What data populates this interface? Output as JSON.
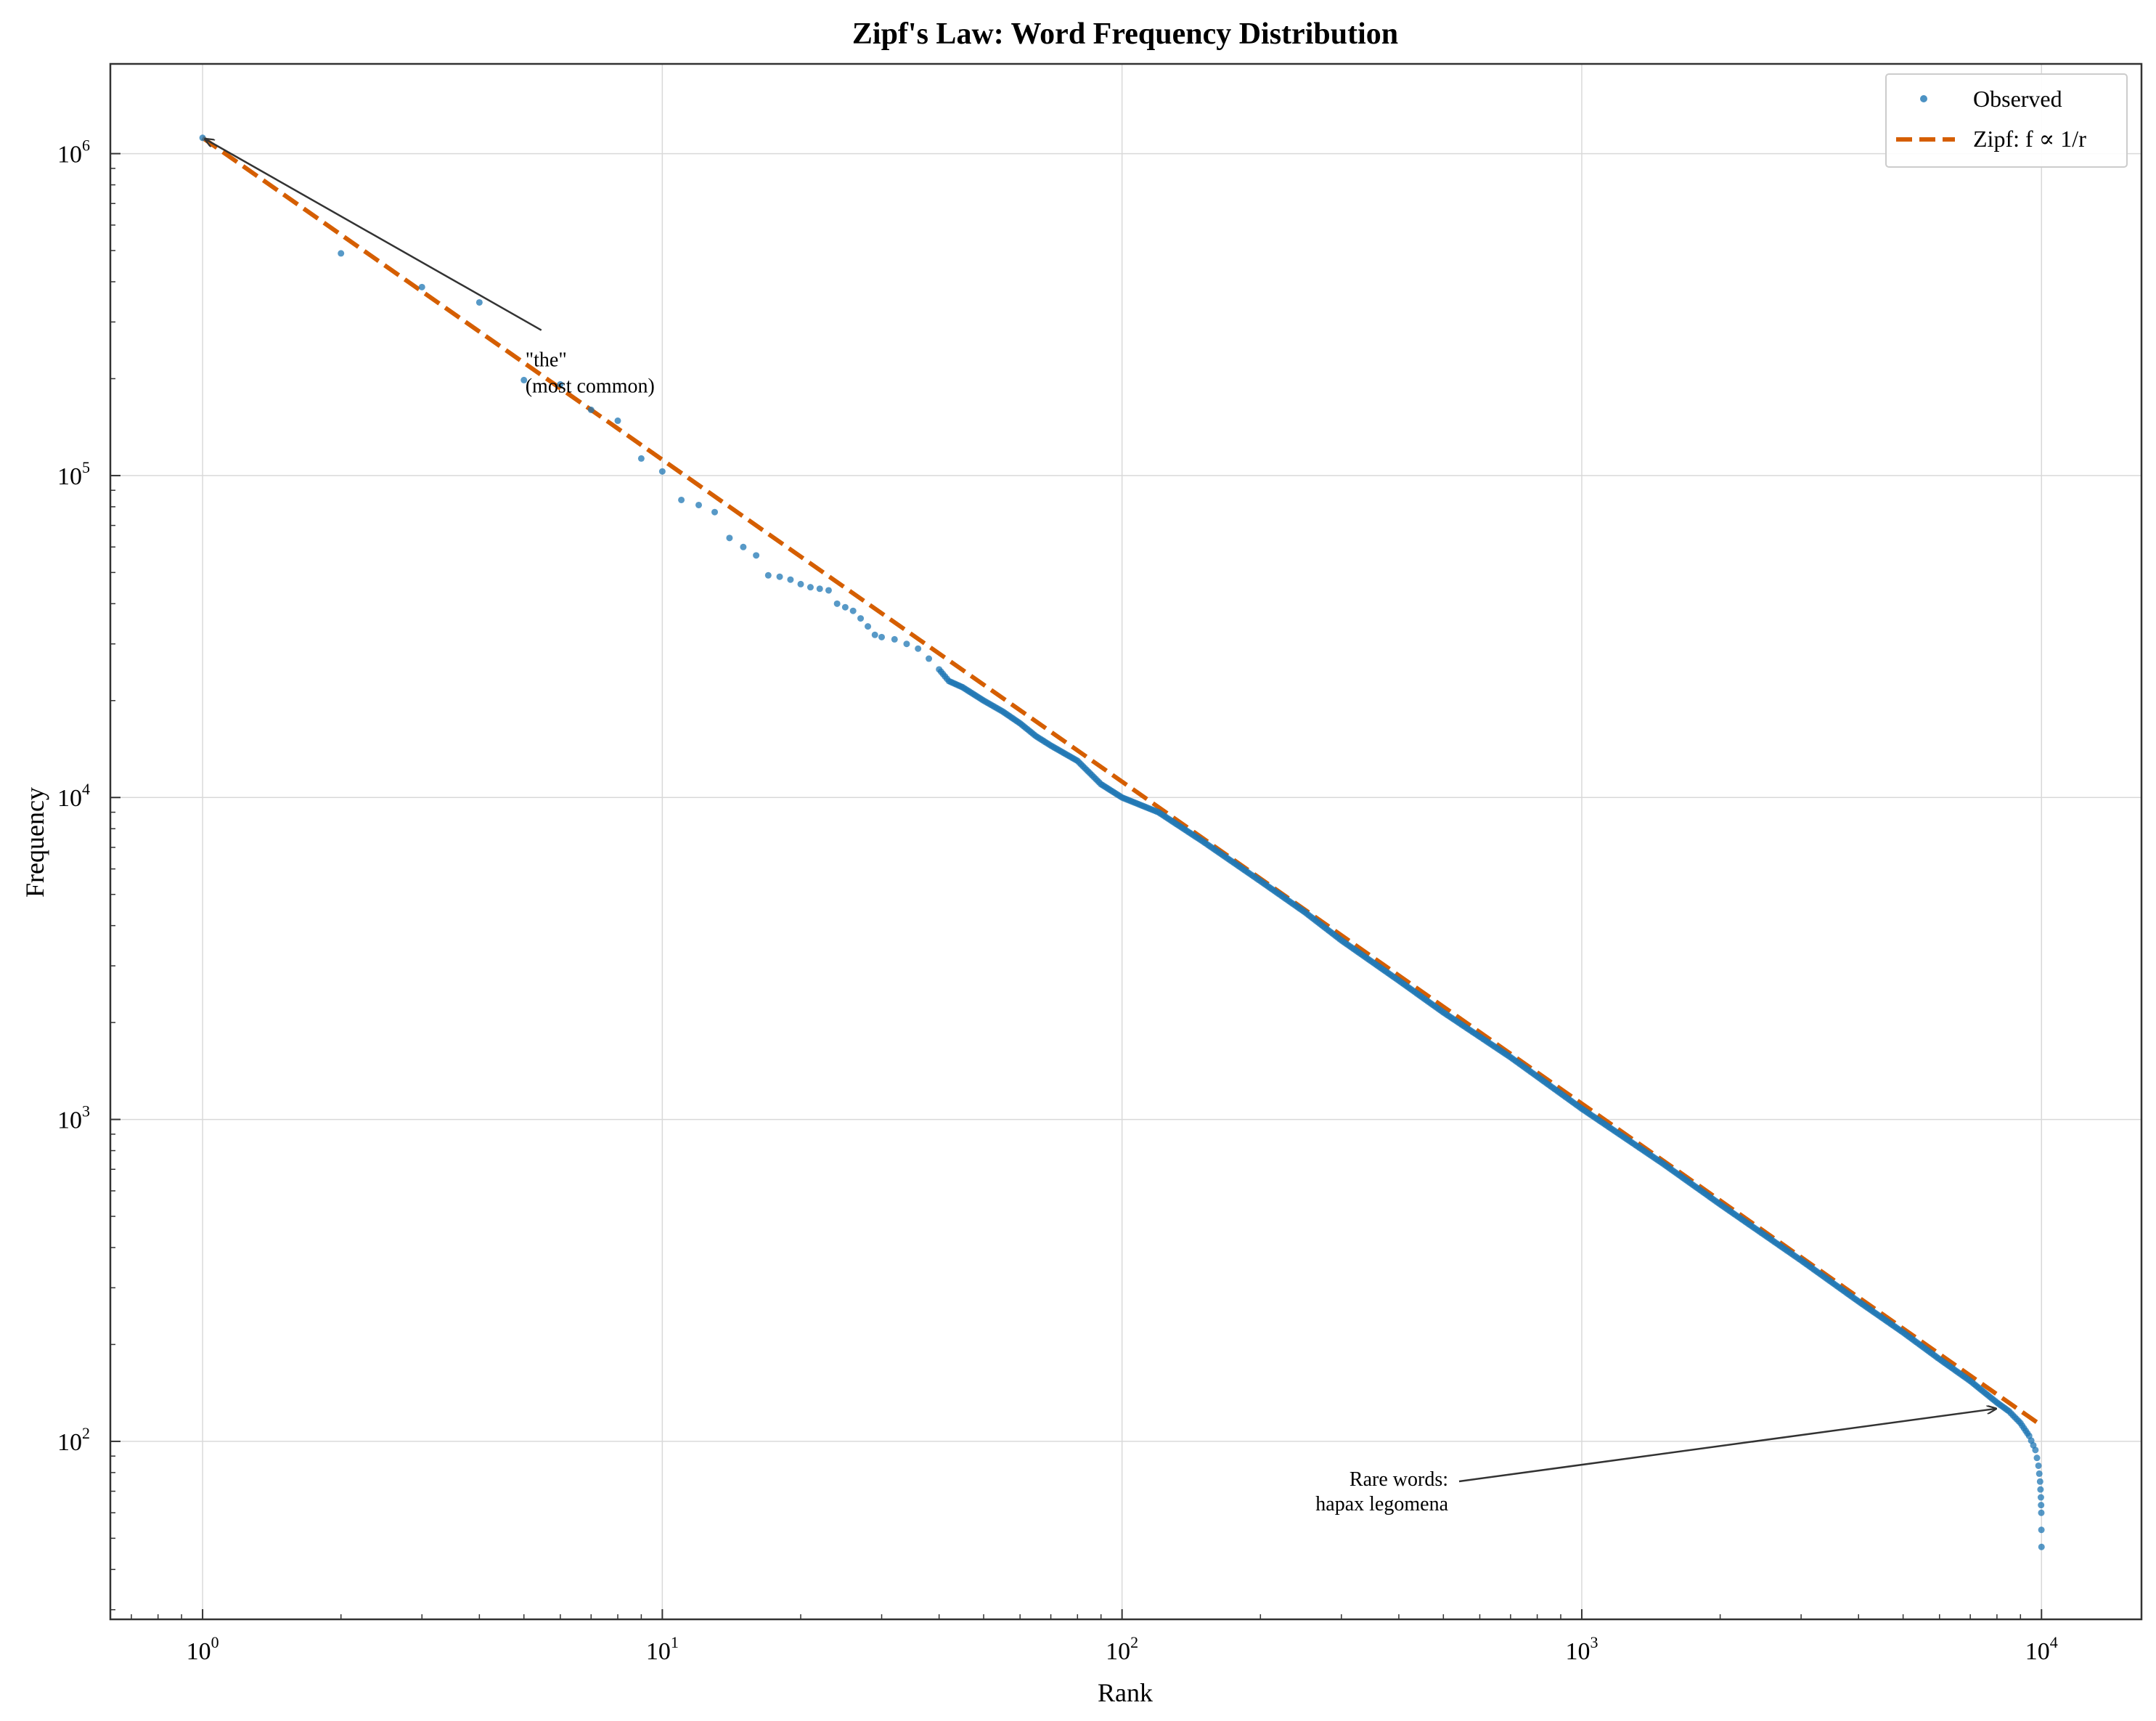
{
  "chart_data": {
    "type": "scatter",
    "title": "Zipf's Law: Word Frequency Distribution",
    "xlabel": "Rank",
    "ylabel": "Frequency",
    "xscale": "log",
    "yscale": "log",
    "xlim": [
      0.63,
      16500
    ],
    "ylim": [
      28,
      1900000
    ],
    "grid": true,
    "legend": {
      "placement": "top-right",
      "entries": [
        {
          "label": "Observed",
          "marker": "dot"
        },
        {
          "label": "Zipf: f ∝ 1/r",
          "marker": "dashed-line"
        }
      ]
    },
    "x_ticks": [
      {
        "base": "10",
        "exp": "0",
        "value": 1
      },
      {
        "base": "10",
        "exp": "1",
        "value": 10
      },
      {
        "base": "10",
        "exp": "2",
        "value": 100
      },
      {
        "base": "10",
        "exp": "3",
        "value": 1000
      },
      {
        "base": "10",
        "exp": "4",
        "value": 10000
      }
    ],
    "y_ticks": [
      {
        "base": "10",
        "exp": "2",
        "value": 100
      },
      {
        "base": "10",
        "exp": "3",
        "value": 1000
      },
      {
        "base": "10",
        "exp": "4",
        "value": 10000
      },
      {
        "base": "10",
        "exp": "5",
        "value": 100000
      },
      {
        "base": "10",
        "exp": "6",
        "value": 1000000
      }
    ],
    "series": [
      {
        "name": "Observed",
        "color": "#1f77b4",
        "style": "points",
        "points": [
          [
            1,
            1120000
          ],
          [
            2,
            490000
          ],
          [
            3,
            385000
          ],
          [
            4,
            345000
          ],
          [
            5,
            198000
          ],
          [
            6,
            192000
          ],
          [
            7,
            160000
          ],
          [
            8,
            148000
          ],
          [
            9,
            113000
          ],
          [
            10,
            103000
          ],
          [
            11,
            84000
          ],
          [
            12,
            81000
          ],
          [
            13,
            77000
          ],
          [
            14,
            64000
          ],
          [
            15,
            60000
          ],
          [
            16,
            56500
          ],
          [
            17,
            49000
          ],
          [
            18,
            48500
          ],
          [
            19,
            47500
          ],
          [
            20,
            46000
          ],
          [
            21,
            45000
          ],
          [
            22,
            44500
          ],
          [
            23,
            44000
          ],
          [
            24,
            40000
          ],
          [
            25,
            39000
          ],
          [
            26,
            38000
          ],
          [
            27,
            36000
          ],
          [
            28,
            34000
          ],
          [
            29,
            32000
          ],
          [
            30,
            31500
          ],
          [
            32,
            31000
          ],
          [
            34,
            30000
          ],
          [
            36,
            29000
          ],
          [
            38,
            27000
          ],
          [
            40,
            25000
          ],
          [
            42,
            23000
          ],
          [
            45,
            22000
          ],
          [
            50,
            20000
          ],
          [
            55,
            18500
          ],
          [
            60,
            17000
          ],
          [
            65,
            15500
          ],
          [
            70,
            14500
          ],
          [
            80,
            13000
          ],
          [
            90,
            11000
          ],
          [
            100,
            10000
          ],
          [
            120,
            9000
          ],
          [
            150,
            7300
          ],
          [
            200,
            5500
          ],
          [
            250,
            4400
          ],
          [
            300,
            3600
          ],
          [
            400,
            2700
          ],
          [
            500,
            2150
          ],
          [
            700,
            1560
          ],
          [
            1000,
            1080
          ],
          [
            1500,
            730
          ],
          [
            2000,
            545
          ],
          [
            3000,
            365
          ],
          [
            4000,
            272
          ],
          [
            5000,
            218
          ],
          [
            6000,
            180
          ],
          [
            7000,
            154
          ],
          [
            8000,
            132
          ],
          [
            8500,
            124
          ],
          [
            9000,
            114
          ],
          [
            9400,
            104
          ],
          [
            9700,
            94
          ],
          [
            9850,
            84
          ],
          [
            9930,
            75
          ],
          [
            9970,
            67
          ],
          [
            9990,
            60
          ],
          [
            10000,
            47
          ]
        ]
      },
      {
        "name": "Zipf: f ∝ 1/r",
        "color": "#d55e00",
        "style": "dashed",
        "points": [
          [
            1,
            1120000
          ],
          [
            10000,
            112
          ]
        ]
      }
    ],
    "annotations": [
      {
        "lines": [
          "\"the\"",
          "(most common)"
        ],
        "target": [
          1,
          1120000
        ],
        "text_at": [
          5,
          280000
        ]
      },
      {
        "lines": [
          "Rare words:",
          "hapax legomena"
        ],
        "target": [
          8000,
          125
        ],
        "text_at": [
          500,
          70000
        ]
      }
    ]
  }
}
